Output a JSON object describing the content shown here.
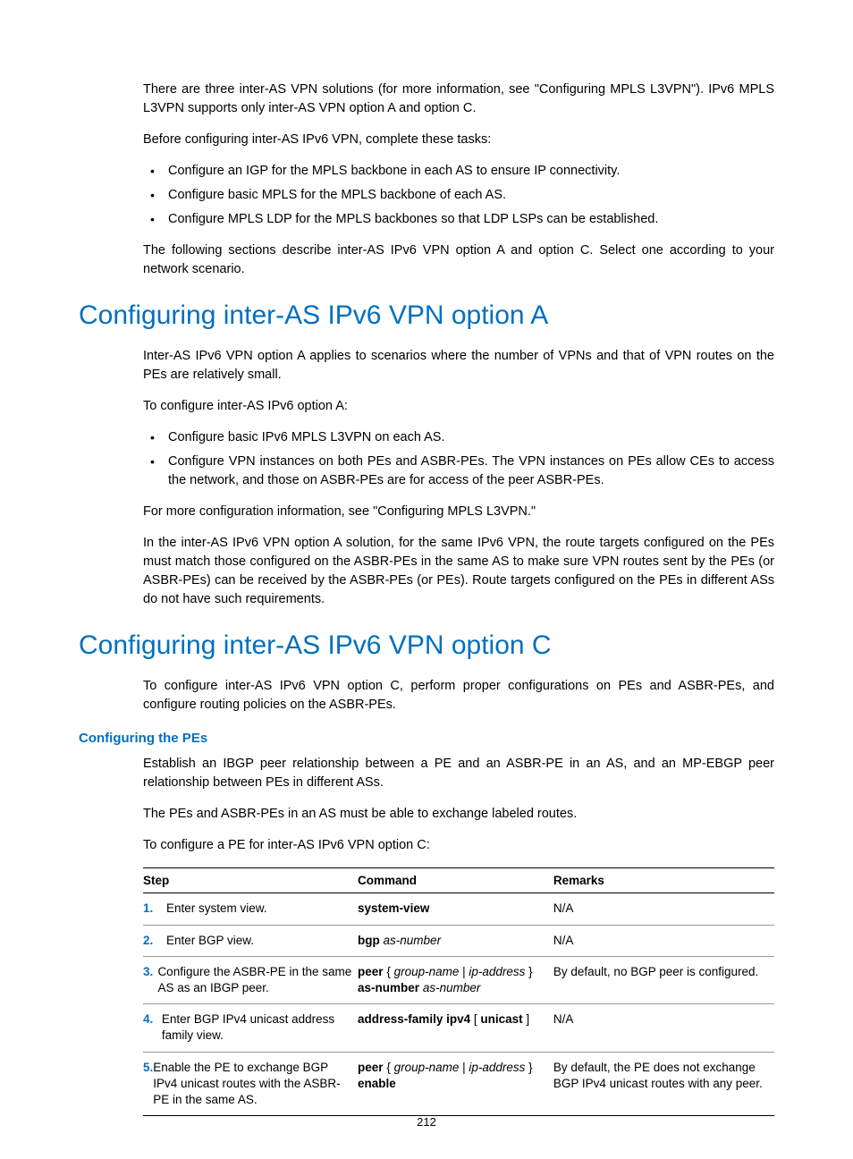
{
  "intro": {
    "p1": "There are three inter-AS VPN solutions (for more information, see \"Configuring MPLS L3VPN\"). IPv6 MPLS L3VPN supports only inter-AS VPN option A and option C.",
    "p2": "Before configuring inter-AS IPv6 VPN, complete these tasks:",
    "bullets": [
      "Configure an IGP for the MPLS backbone in each AS to ensure IP connectivity.",
      "Configure basic MPLS for the MPLS backbone of each AS.",
      "Configure MPLS LDP for the MPLS backbones so that LDP LSPs can be established."
    ],
    "p3": "The following sections describe inter-AS IPv6 VPN option A and option C. Select one according to your network scenario."
  },
  "sectionA": {
    "title": "Configuring inter-AS IPv6 VPN option A",
    "p1": "Inter-AS IPv6 VPN option A applies to scenarios where the number of VPNs and that of VPN routes on the PEs are relatively small.",
    "p2": "To configure inter-AS IPv6 option A:",
    "bullets": [
      "Configure basic IPv6 MPLS L3VPN on each AS.",
      "Configure VPN instances on both PEs and ASBR-PEs. The VPN instances on PEs allow CEs to access the network, and those on ASBR-PEs are for access of the peer ASBR-PEs."
    ],
    "p3": "For more configuration information, see \"Configuring MPLS L3VPN.\"",
    "p4": "In the inter-AS IPv6 VPN option A solution, for the same IPv6 VPN, the route targets configured on the PEs must match those configured on the ASBR-PEs in the same AS to make sure VPN routes sent by the PEs (or ASBR-PEs) can be received by the ASBR-PEs (or PEs). Route targets configured on the PEs in different ASs do not have such requirements."
  },
  "sectionC": {
    "title": "Configuring inter-AS IPv6 VPN option C",
    "p1": "To configure inter-AS IPv6 VPN option C, perform proper configurations on PEs and ASBR-PEs, and configure routing policies on the ASBR-PEs.",
    "sub": "Configuring the PEs",
    "p2": "Establish an IBGP peer relationship between a PE and an ASBR-PE in an AS, and an MP-EBGP peer relationship between PEs in different ASs.",
    "p3": "The PEs and ASBR-PEs in an AS must be able to exchange labeled routes.",
    "p4": "To configure a PE for inter-AS IPv6 VPN option C:"
  },
  "table": {
    "headers": {
      "step": "Step",
      "cmd": "Command",
      "rem": "Remarks"
    },
    "rows": [
      {
        "num": "1.",
        "step": "Enter system view.",
        "cmd": [
          {
            "b": "system-view"
          }
        ],
        "rem": "N/A"
      },
      {
        "num": "2.",
        "step": "Enter BGP view.",
        "cmd": [
          {
            "b": "bgp "
          },
          {
            "i": "as-number"
          }
        ],
        "rem": "N/A"
      },
      {
        "num": "3.",
        "step": "Configure the ASBR-PE in the same AS as an IBGP peer.",
        "cmd": [
          {
            "b": "peer "
          },
          {
            "t": "{ "
          },
          {
            "i": "group-name"
          },
          {
            "t": " | "
          },
          {
            "i": "ip-address"
          },
          {
            "t": " }"
          },
          {
            "br": true
          },
          {
            "b": "as-number "
          },
          {
            "i": "as-number"
          }
        ],
        "rem": "By default, no BGP peer is configured."
      },
      {
        "num": "4.",
        "step": "Enter BGP IPv4 unicast address family view.",
        "cmd": [
          {
            "b": "address-family ipv4"
          },
          {
            "t": " [ "
          },
          {
            "b": "unicast"
          },
          {
            "t": " ]"
          }
        ],
        "rem": "N/A"
      },
      {
        "num": "5.",
        "step": "Enable the PE to exchange BGP IPv4 unicast routes with the ASBR-PE in the same AS.",
        "cmd": [
          {
            "b": "peer "
          },
          {
            "t": "{ "
          },
          {
            "i": "group-name"
          },
          {
            "t": " | "
          },
          {
            "i": "ip-address"
          },
          {
            "t": " }"
          },
          {
            "br": true
          },
          {
            "b": "enable"
          }
        ],
        "rem": "By default, the PE does not exchange BGP IPv4 unicast routes with any peer."
      }
    ]
  },
  "pageNumber": "212",
  "colors": {
    "accent": "#0070c0",
    "text": "#000000",
    "background": "#ffffff",
    "tableBorder": "#999999"
  }
}
